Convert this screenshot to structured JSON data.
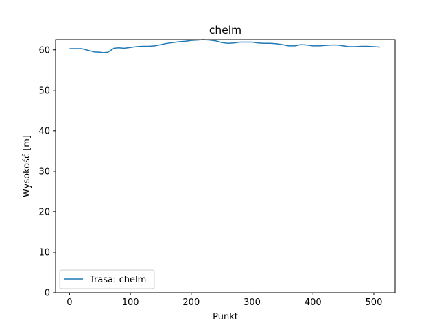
{
  "chart_data": {
    "type": "line",
    "title": "chelm",
    "xlabel": "Punkt",
    "ylabel": "Wysokość [m]",
    "xlim": [
      -23,
      535
    ],
    "ylim": [
      0,
      62.5
    ],
    "xticks": [
      0,
      100,
      200,
      300,
      400,
      500
    ],
    "yticks": [
      0,
      10,
      20,
      30,
      40,
      50,
      60
    ],
    "grid": false,
    "legend_position": "lower-left",
    "series": [
      {
        "name": "Trasa: chelm",
        "color": "#1f77b4",
        "x": [
          0,
          10,
          20,
          30,
          40,
          50,
          55,
          63,
          73,
          80,
          90,
          100,
          110,
          120,
          130,
          140,
          150,
          160,
          170,
          180,
          190,
          200,
          210,
          220,
          230,
          240,
          250,
          260,
          270,
          280,
          290,
          300,
          310,
          320,
          330,
          340,
          350,
          360,
          370,
          380,
          390,
          400,
          410,
          420,
          430,
          440,
          450,
          460,
          470,
          480,
          490,
          500,
          510
        ],
        "y": [
          60.3,
          60.3,
          60.3,
          59.9,
          59.5,
          59.4,
          59.3,
          59.4,
          60.4,
          60.5,
          60.4,
          60.6,
          60.8,
          60.9,
          60.9,
          61.0,
          61.3,
          61.6,
          61.8,
          62.0,
          62.1,
          62.3,
          62.4,
          62.5,
          62.4,
          62.2,
          61.8,
          61.6,
          61.7,
          61.9,
          61.9,
          61.9,
          61.7,
          61.6,
          61.6,
          61.5,
          61.3,
          61.0,
          61.0,
          61.3,
          61.2,
          61.0,
          61.0,
          61.1,
          61.2,
          61.2,
          61.0,
          60.8,
          60.8,
          60.9,
          60.9,
          60.8,
          60.7
        ]
      }
    ]
  }
}
